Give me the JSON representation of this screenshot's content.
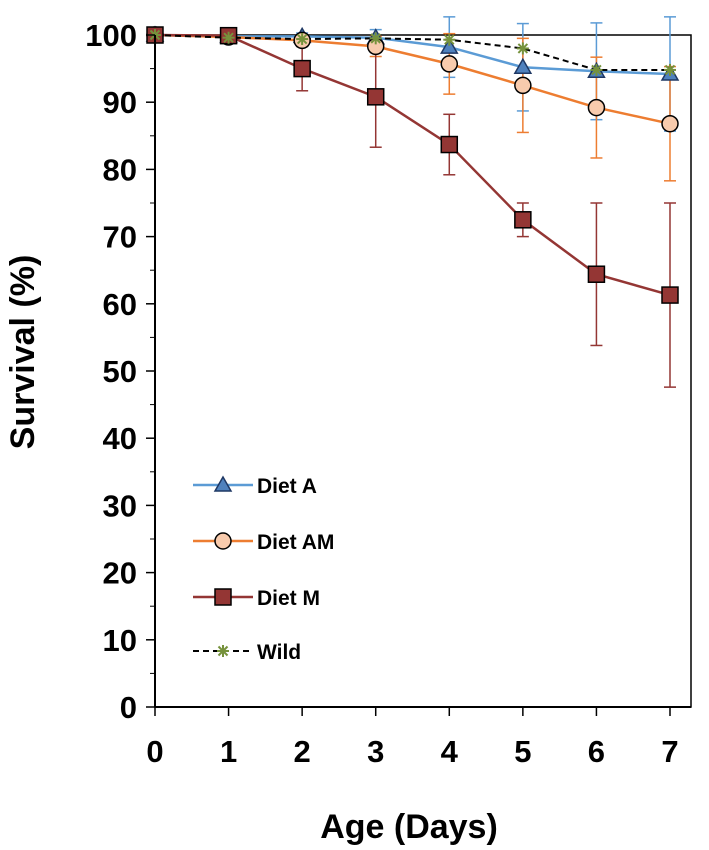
{
  "chart_data": {
    "type": "line",
    "xlabel": "Age (Days)",
    "ylabel": "Survival (%)",
    "x": [
      0,
      1,
      2,
      3,
      4,
      5,
      6,
      7
    ],
    "xlim": [
      0,
      7
    ],
    "ylim": [
      0,
      100
    ],
    "x_ticks": [
      0,
      1,
      2,
      3,
      4,
      5,
      6,
      7
    ],
    "y_ticks": [
      0,
      10,
      20,
      30,
      40,
      50,
      60,
      70,
      80,
      90,
      100
    ],
    "grid": false,
    "legend_position": "bottom-left",
    "series": [
      {
        "name": "Diet A",
        "color": "#5B9BD5",
        "marker": "triangle",
        "line_style": "solid",
        "values": [
          100,
          99.8,
          99.8,
          99.6,
          98.2,
          95.2,
          94.6,
          94.2
        ],
        "error_up": [
          0,
          0,
          0.5,
          1.2,
          4.5,
          6.5,
          7.2,
          8.5
        ],
        "error_down": [
          0,
          0,
          0.5,
          1.2,
          4.5,
          6.5,
          7.2,
          8.5
        ]
      },
      {
        "name": "Diet AM",
        "color": "#ED7D31",
        "marker": "circle",
        "line_style": "solid",
        "values": [
          100,
          99.7,
          99.2,
          98.3,
          95.7,
          92.5,
          89.2,
          86.8
        ],
        "error_up": [
          0,
          0,
          0.5,
          1.5,
          4.5,
          7.0,
          7.5,
          8.5
        ],
        "error_down": [
          0,
          0,
          0.5,
          1.5,
          4.5,
          7.0,
          7.5,
          8.5
        ]
      },
      {
        "name": "Diet M",
        "color": "#943634",
        "marker": "square",
        "line_style": "solid",
        "values": [
          100,
          99.9,
          95.0,
          90.8,
          83.7,
          72.5,
          64.4,
          61.3
        ],
        "error_up": [
          0,
          0,
          3.3,
          7.5,
          4.5,
          2.5,
          10.6,
          13.7
        ],
        "error_down": [
          0,
          0,
          3.3,
          7.5,
          4.5,
          2.5,
          10.6,
          13.7
        ]
      },
      {
        "name": "Wild",
        "color": "#000000",
        "marker_color": "#76923C",
        "marker": "asterisk",
        "line_style": "dashed",
        "values": [
          100,
          99.6,
          99.4,
          99.5,
          99.3,
          98.0,
          94.8,
          94.8
        ],
        "error_up": [
          0,
          0,
          0,
          0,
          0,
          0,
          0,
          0
        ],
        "error_down": [
          0,
          0,
          0,
          0,
          0,
          0,
          0,
          0
        ]
      }
    ]
  }
}
